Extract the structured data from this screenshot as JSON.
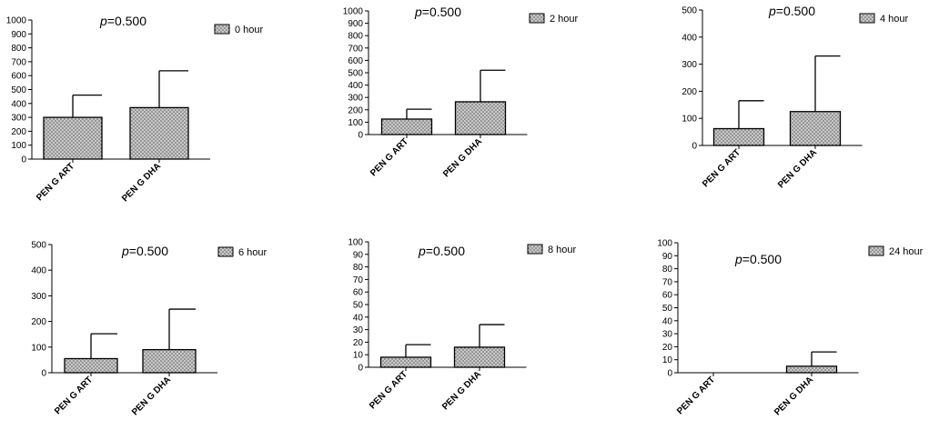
{
  "colors": {
    "bar_fill": "#c8c8c8",
    "bar_dots": "#5a5a5a",
    "axis": "#000000",
    "background": "#ffffff"
  },
  "chart_data": [
    {
      "type": "bar",
      "categories": [
        "PEN G ART",
        "PEN G DHA"
      ],
      "values": [
        300,
        370
      ],
      "error_upper": [
        460,
        635
      ],
      "ylim": [
        0,
        1000
      ],
      "yticks": [
        0,
        100,
        200,
        300,
        400,
        500,
        600,
        700,
        800,
        900,
        1000
      ],
      "legend": "0 hour",
      "p_label": "p",
      "p_value": "=0.500",
      "xlabel": "",
      "ylabel": "",
      "title": ""
    },
    {
      "type": "bar",
      "categories": [
        "PEN G ART",
        "PEN G DHA"
      ],
      "values": [
        125,
        265
      ],
      "error_upper": [
        205,
        520
      ],
      "ylim": [
        0,
        1000
      ],
      "yticks": [
        0,
        100,
        200,
        300,
        400,
        500,
        600,
        700,
        800,
        900,
        1000
      ],
      "legend": "2 hour",
      "p_label": "p",
      "p_value": "=0.500",
      "xlabel": "",
      "ylabel": "",
      "title": ""
    },
    {
      "type": "bar",
      "categories": [
        "PEN G ART",
        "PEN G DHA"
      ],
      "values": [
        62,
        125
      ],
      "error_upper": [
        165,
        330
      ],
      "ylim": [
        0,
        500
      ],
      "yticks": [
        0,
        100,
        200,
        300,
        400,
        500
      ],
      "legend": "4 hour",
      "p_label": "p",
      "p_value": "=0.500",
      "xlabel": "",
      "ylabel": "",
      "title": ""
    },
    {
      "type": "bar",
      "categories": [
        "PEN G ART",
        "PEN G DHA"
      ],
      "values": [
        55,
        90
      ],
      "error_upper": [
        152,
        248
      ],
      "ylim": [
        0,
        500
      ],
      "yticks": [
        0,
        100,
        200,
        300,
        400,
        500
      ],
      "legend": "6 hour",
      "p_label": "p",
      "p_value": "=0.500",
      "xlabel": "",
      "ylabel": "",
      "title": ""
    },
    {
      "type": "bar",
      "categories": [
        "PEN G ART",
        "PEN G DHA"
      ],
      "values": [
        8,
        16
      ],
      "error_upper": [
        18,
        34
      ],
      "ylim": [
        0,
        100
      ],
      "yticks": [
        0,
        10,
        20,
        30,
        40,
        50,
        60,
        70,
        80,
        90,
        100
      ],
      "legend": "8 hour",
      "p_label": "p",
      "p_value": "=0.500",
      "xlabel": "",
      "ylabel": "",
      "title": ""
    },
    {
      "type": "bar",
      "categories": [
        "PEN G ART",
        "PEN G DHA"
      ],
      "values": [
        0,
        5
      ],
      "error_upper": [
        0,
        16
      ],
      "ylim": [
        0,
        100
      ],
      "yticks": [
        0,
        10,
        20,
        30,
        40,
        50,
        60,
        70,
        80,
        90,
        100
      ],
      "legend": "24 hour",
      "p_label": "p",
      "p_value": "=0.500",
      "xlabel": "",
      "ylabel": "",
      "title": ""
    }
  ]
}
